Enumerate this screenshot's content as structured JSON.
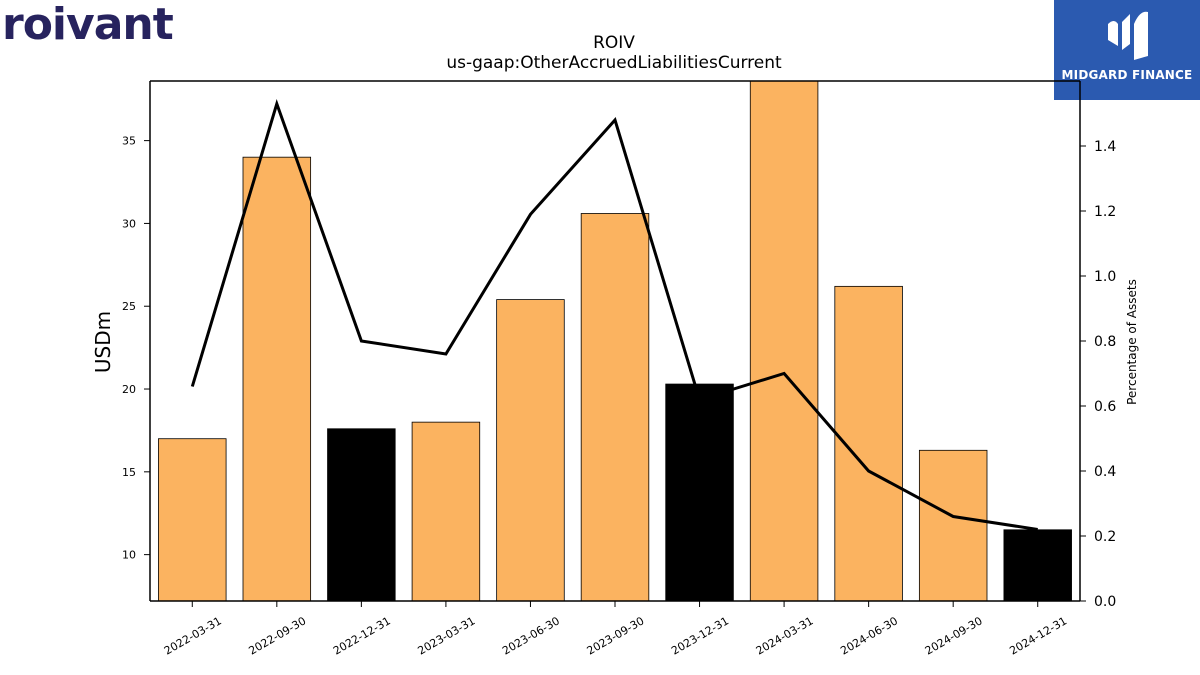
{
  "branding": {
    "company_logo_text": "roivant",
    "publisher_logo_text": "MIDGARD FINANCE",
    "publisher_logo_color": "#2b5ab0",
    "company_logo_color": "#27235e"
  },
  "chart_data": {
    "type": "bar",
    "title": "ROIV",
    "subtitle": "us-gaap:OtherAccruedLiabilitiesCurrent",
    "ylabel": "USDm",
    "y2label": "Percentage of Assets",
    "ylim": [
      7.2,
      38.6
    ],
    "y2lim": [
      0.0,
      1.6
    ],
    "yticks": [
      10,
      15,
      20,
      25,
      30,
      35
    ],
    "y2ticks": [
      0.0,
      0.2,
      0.4,
      0.6,
      0.8,
      1.0,
      1.2,
      1.4
    ],
    "categories": [
      "2022-03-31",
      "2022-09-30",
      "2022-12-31",
      "2023-03-31",
      "2023-06-30",
      "2023-09-30",
      "2023-12-31",
      "2024-03-31",
      "2024-06-30",
      "2024-09-30",
      "2024-12-31"
    ],
    "series": [
      {
        "kind": "bar",
        "values": [
          17.0,
          34.0,
          17.6,
          18.0,
          25.4,
          30.6,
          20.3,
          38.6,
          26.2,
          16.3,
          11.5
        ],
        "colors": [
          "#fbb360",
          "#fbb360",
          "#000000",
          "#fbb360",
          "#fbb360",
          "#fbb360",
          "#000000",
          "#fbb360",
          "#fbb360",
          "#fbb360",
          "#000000"
        ]
      },
      {
        "kind": "line",
        "axis": "right",
        "color": "#000000",
        "values": [
          0.66,
          1.53,
          0.8,
          0.76,
          1.19,
          1.48,
          0.62,
          0.7,
          0.4,
          0.26,
          0.22
        ]
      }
    ],
    "grid": false
  }
}
